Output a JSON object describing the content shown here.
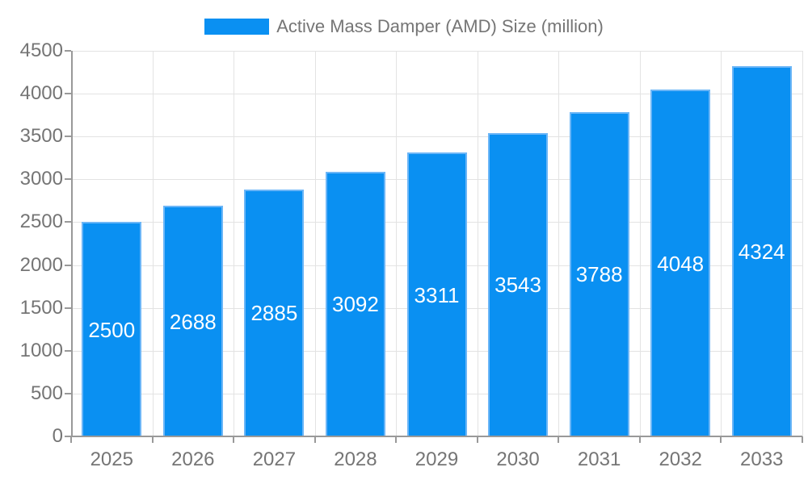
{
  "legend": {
    "label": "Active Mass Damper (AMD) Size (million)"
  },
  "chart_data": {
    "type": "bar",
    "title": "Active Mass Damper (AMD) Size (million)",
    "categories": [
      "2025",
      "2026",
      "2027",
      "2028",
      "2029",
      "2030",
      "2031",
      "2032",
      "2033"
    ],
    "series": [
      {
        "name": "Active Mass Damper (AMD) Size (million)",
        "values": [
          2500,
          2688,
          2885,
          3092,
          3311,
          3543,
          3788,
          4048,
          4324
        ]
      }
    ],
    "xlabel": "",
    "ylabel": "",
    "ylim": [
      0,
      4500
    ],
    "yticks": [
      0,
      500,
      1000,
      1500,
      2000,
      2500,
      3000,
      3500,
      4000,
      4500
    ],
    "grid": true,
    "legend_position": "top",
    "value_label_position": "inside-center"
  },
  "colors": {
    "background": "#ffffff",
    "bar": "#0a90f2",
    "bar_border": "#6cb6f7",
    "axis_line": "#999999",
    "grid_line": "#e3e3e3",
    "tick_text": "#757575",
    "value_text": "#ffffff"
  }
}
